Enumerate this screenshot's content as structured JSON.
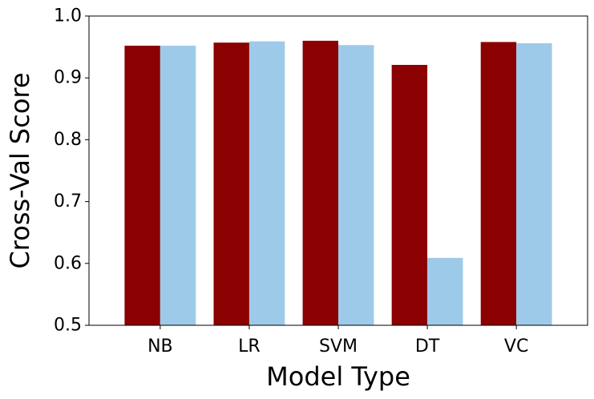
{
  "chart_data": {
    "type": "bar",
    "categories": [
      "NB",
      "LR",
      "SVM",
      "DT",
      "VC"
    ],
    "series": [
      {
        "values": [
          0.952,
          0.957,
          0.96,
          0.921,
          0.958
        ],
        "color": "#8b0000"
      },
      {
        "values": [
          0.952,
          0.959,
          0.953,
          0.609,
          0.956
        ],
        "color": "#9ecae9"
      }
    ],
    "xlabel": "Model Type",
    "ylabel": "Cross-Val Score",
    "ylim": [
      0.5,
      1.0
    ],
    "yticks": [
      "0.5",
      "0.6",
      "0.7",
      "0.8",
      "0.9",
      "1.0"
    ],
    "grid": false,
    "legend": "none"
  }
}
